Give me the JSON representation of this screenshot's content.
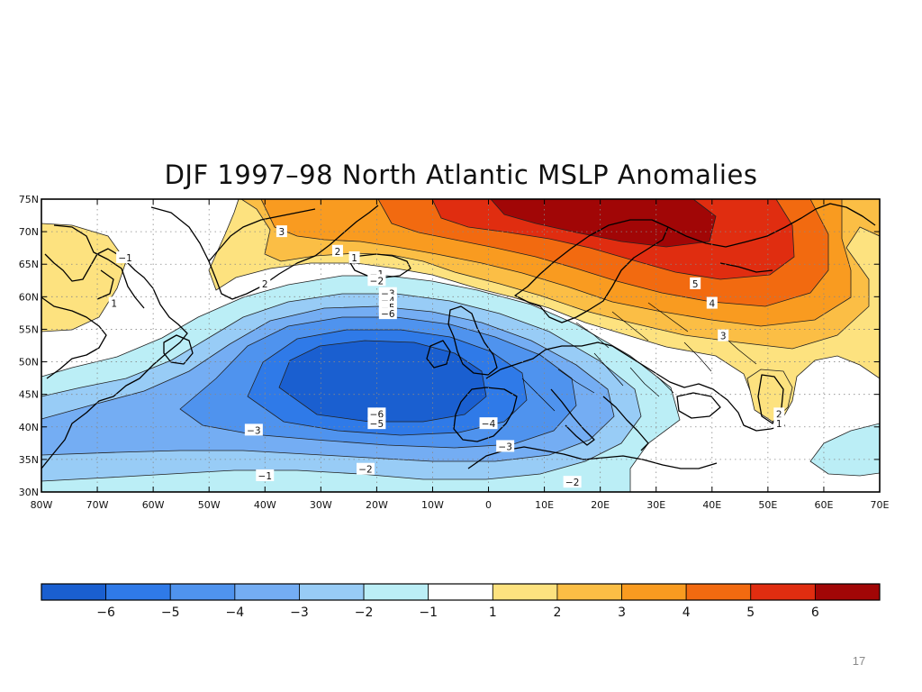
{
  "slide": {
    "title": "DJF 1997–98 North Atlantic MSLP Anomalies",
    "page_number": "17"
  },
  "map": {
    "lon_range": [
      -80,
      70
    ],
    "lat_range": [
      30,
      75
    ],
    "lat_tick_labels": [
      "75N",
      "70N",
      "65N",
      "60N",
      "55N",
      "50N",
      "45N",
      "40N",
      "35N",
      "30N"
    ],
    "lon_tick_labels": [
      "80W",
      "70W",
      "60W",
      "50W",
      "40W",
      "30W",
      "20W",
      "10W",
      "0",
      "10E",
      "20E",
      "30E",
      "40E",
      "50E",
      "60E",
      "70E"
    ],
    "contour_labels": [
      {
        "text": "−1",
        "lon": -65,
        "lat": 66
      },
      {
        "text": "1",
        "lon": -67,
        "lat": 59
      },
      {
        "text": "3",
        "lon": -37,
        "lat": 70
      },
      {
        "text": "2",
        "lon": -40,
        "lat": 62
      },
      {
        "text": "2",
        "lon": -27,
        "lat": 67
      },
      {
        "text": "1",
        "lon": -24,
        "lat": 66
      },
      {
        "text": "−1",
        "lon": -20,
        "lat": 63.5
      },
      {
        "text": "−2",
        "lon": -20,
        "lat": 62.5
      },
      {
        "text": "−3",
        "lon": -18,
        "lat": 60.5
      },
      {
        "text": "−4",
        "lon": -18,
        "lat": 59.4
      },
      {
        "text": "−5",
        "lon": -18,
        "lat": 58.4
      },
      {
        "text": "−6",
        "lon": -18,
        "lat": 57.4
      },
      {
        "text": "−6",
        "lon": -20,
        "lat": 42
      },
      {
        "text": "−5",
        "lon": -20,
        "lat": 40.5
      },
      {
        "text": "−3",
        "lon": -42,
        "lat": 39.5
      },
      {
        "text": "−4",
        "lon": 0,
        "lat": 40.5
      },
      {
        "text": "−3",
        "lon": 3,
        "lat": 37
      },
      {
        "text": "−2",
        "lon": -22,
        "lat": 33.5
      },
      {
        "text": "−1",
        "lon": -40,
        "lat": 32.5
      },
      {
        "text": "−2",
        "lon": 15,
        "lat": 31.5
      },
      {
        "text": "5",
        "lon": 37,
        "lat": 62
      },
      {
        "text": "4",
        "lon": 40,
        "lat": 59
      },
      {
        "text": "3",
        "lon": 42,
        "lat": 54
      },
      {
        "text": "2",
        "lon": 52,
        "lat": 42
      },
      {
        "text": "1",
        "lon": 52,
        "lat": 40.5
      }
    ]
  },
  "colorbar": {
    "colors": [
      "#1a5fd0",
      "#2f7ae8",
      "#4f93ee",
      "#74adf3",
      "#98ccf6",
      "#bbeef6",
      "#ffffff",
      "#fde27f",
      "#fbbe45",
      "#f99b20",
      "#f26a10",
      "#e02d10",
      "#a10606"
    ],
    "tick_labels": [
      "−6",
      "−5",
      "−4",
      "−3",
      "−2",
      "−1",
      "1",
      "2",
      "3",
      "4",
      "5",
      "6"
    ]
  }
}
